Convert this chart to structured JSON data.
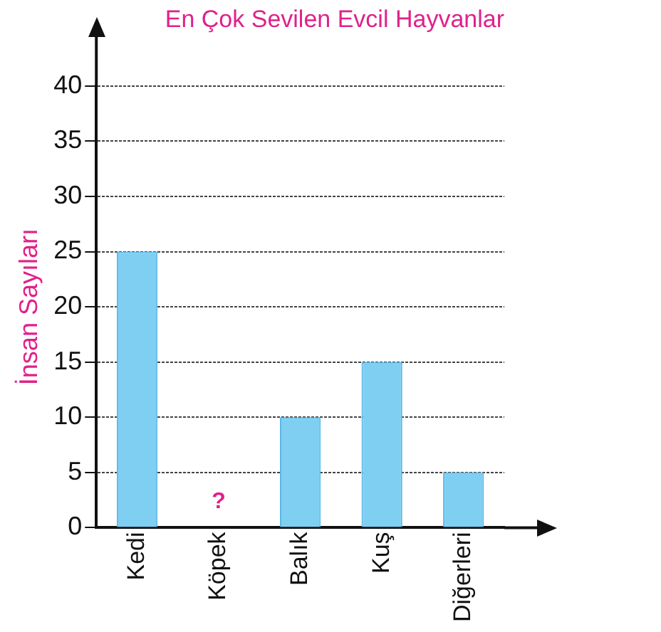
{
  "chart_data": {
    "type": "bar",
    "title": "En Çok Sevilen Evcil Hayvanlar",
    "ylabel": "İnsan Sayıları",
    "categories": [
      "Kedi",
      "Köpek",
      "Balık",
      "Kuş",
      "Diğerleri"
    ],
    "values": [
      25,
      null,
      10,
      15,
      5
    ],
    "color": "#7fcff3",
    "ylim": [
      0,
      40
    ],
    "yticks": [
      0,
      5,
      10,
      15,
      20,
      25,
      30,
      35,
      40
    ],
    "grid": "y",
    "legend": false,
    "annotations": [
      "?"
    ]
  }
}
